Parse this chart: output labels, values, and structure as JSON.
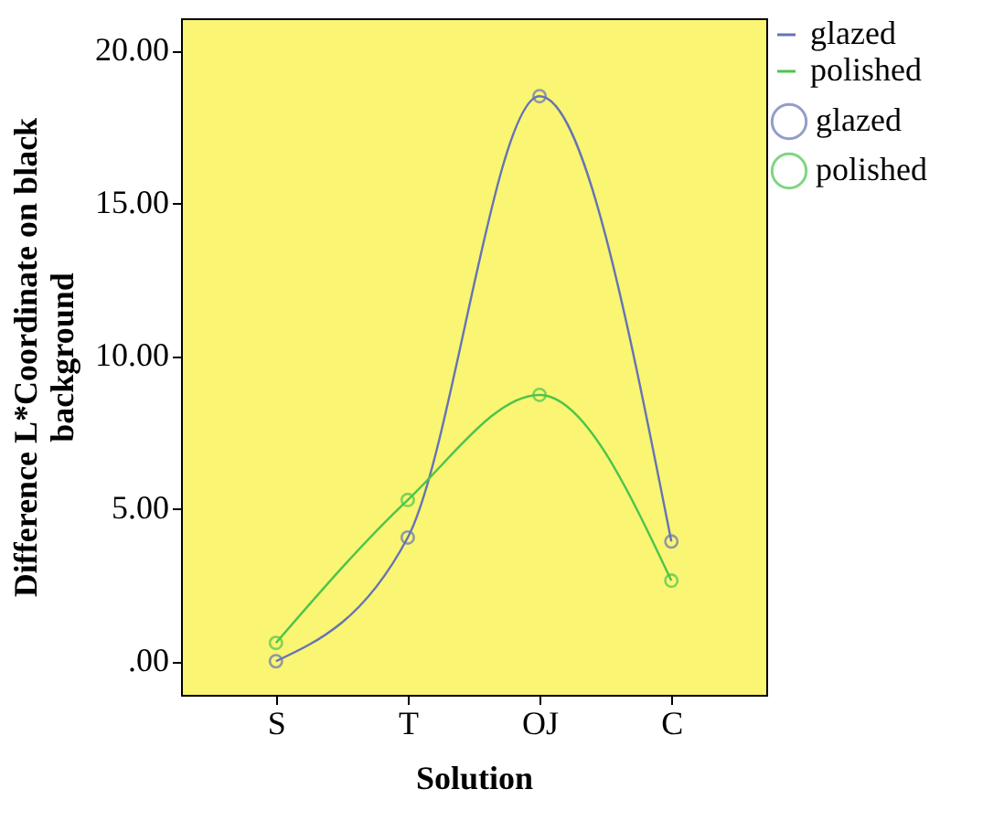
{
  "chart_data": {
    "type": "line",
    "xlabel": "Solution",
    "ylabel": "Difference L*Coordinate on black background",
    "categories": [
      "S",
      "T",
      "OJ",
      "C"
    ],
    "series": [
      {
        "name": "glazed",
        "color": "#6674b4",
        "values": [
          0.0,
          4.05,
          18.5,
          3.92
        ]
      },
      {
        "name": "polished",
        "color": "#4cc44c",
        "values": [
          0.6,
          5.28,
          8.72,
          2.64
        ]
      }
    ],
    "ylim": [
      -1.1,
      21.05
    ],
    "yticks": [
      {
        "value": 0,
        "label": ".00"
      },
      {
        "value": 5,
        "label": "5.00"
      },
      {
        "value": 10,
        "label": "10.00"
      },
      {
        "value": 15,
        "label": "15.00"
      },
      {
        "value": 20,
        "label": "20.00"
      }
    ],
    "marker": "circle",
    "line_style": "solid",
    "legend": "top right",
    "grid": false
  }
}
